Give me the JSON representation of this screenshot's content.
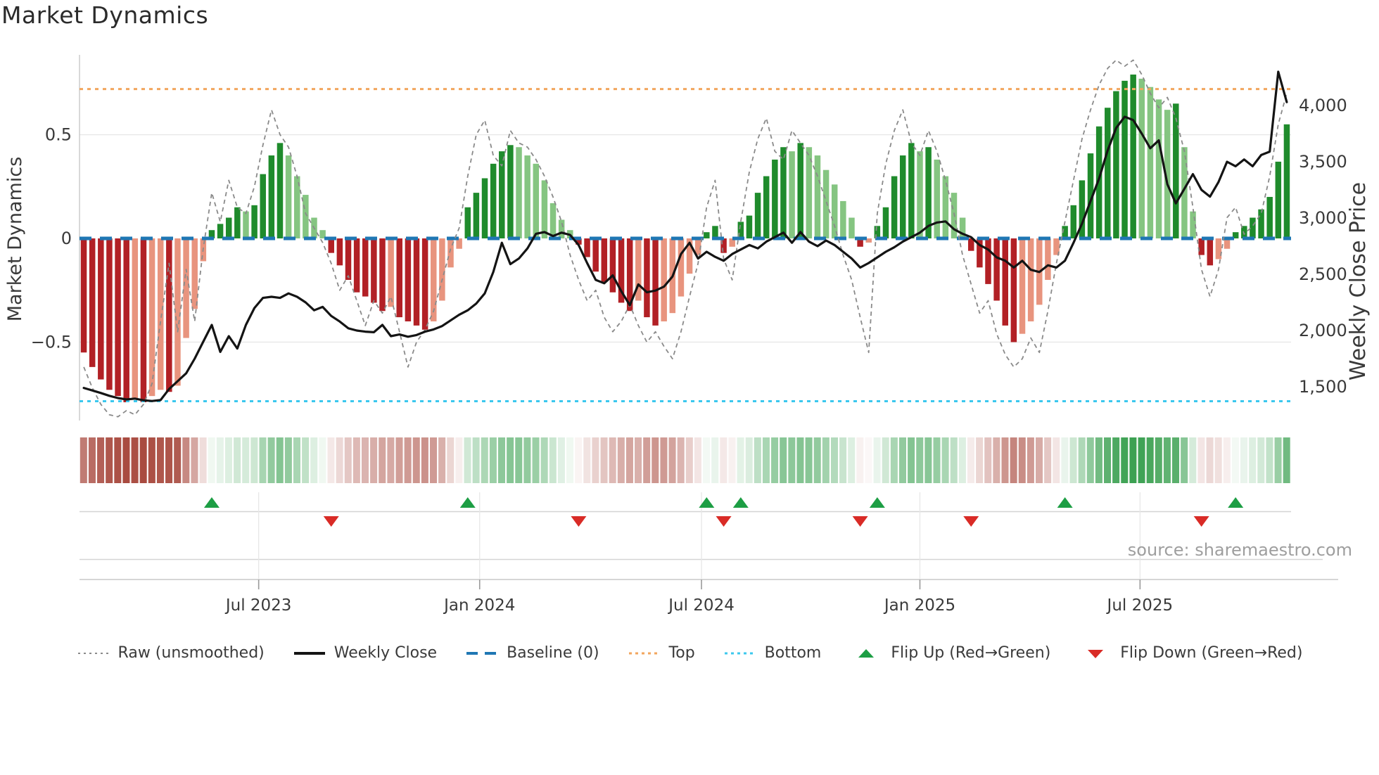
{
  "title": "Market Dynamics",
  "source_text": "source: sharemaestro.com",
  "left_axis": {
    "title": "Market Dynamics",
    "ticks": [
      {
        "label": "0.5",
        "value": 0.5
      },
      {
        "label": "0",
        "value": 0
      },
      {
        "label": "−0.5",
        "value": -0.5
      }
    ],
    "gridline_values": [
      0.5,
      -0.5
    ]
  },
  "right_axis": {
    "title": "Weekly Close Price",
    "ticks": [
      {
        "label": "4,000",
        "value": 4000
      },
      {
        "label": "3,500",
        "value": 3500
      },
      {
        "label": "3,000",
        "value": 3000
      },
      {
        "label": "2,500",
        "value": 2500
      },
      {
        "label": "2,000",
        "value": 2000
      },
      {
        "label": "1,500",
        "value": 1500
      }
    ]
  },
  "x_axis": {
    "ticks": [
      {
        "label": "Jul 2023",
        "week": 20.5
      },
      {
        "label": "Jan 2024",
        "week": 46.4
      },
      {
        "label": "Jul 2024",
        "week": 72.4
      },
      {
        "label": "Jan 2025",
        "week": 98.0
      },
      {
        "label": "Jul 2025",
        "week": 123.8
      }
    ]
  },
  "colors": {
    "bar_up_strong": "#1f8b2c",
    "bar_up_weak": "#85c581",
    "bar_down_strong": "#b22025",
    "bar_down_weak": "#e8947e",
    "baseline": "#1f77b4",
    "top_line": "#f2a65e",
    "bottom_line": "#3cc8ee",
    "raw_line": "#8a8a8a",
    "close_line": "#141414",
    "heat_pos_full": "#3aa050",
    "heat_neg_full": "#a8493e",
    "flip_up": "#1d9e44",
    "flip_down": "#d92b26",
    "grid": "#e7e7e7",
    "band_grid": "#d4d4d4",
    "spine": "#c9c9c9",
    "tick_text": "#3a3a3a",
    "source_text": "#9e9e9e"
  },
  "legend": {
    "items": [
      {
        "name": "legend-item-raw",
        "label": "Raw (unsmoothed)",
        "swatch": "line",
        "color": "#8a8a8a",
        "dash": "3 5",
        "width": 2
      },
      {
        "name": "legend-item-close",
        "label": "Weekly Close",
        "swatch": "line",
        "color": "#141414",
        "dash": "",
        "width": 4
      },
      {
        "name": "legend-item-baseline",
        "label": "Baseline (0)",
        "swatch": "line",
        "color": "#1f77b4",
        "dash": "16 10",
        "width": 4
      },
      {
        "name": "legend-item-top",
        "label": "Top",
        "swatch": "line",
        "color": "#f2a65e",
        "dash": "4 5",
        "width": 3
      },
      {
        "name": "legend-item-bottom",
        "label": "Bottom",
        "swatch": "line",
        "color": "#3cc8ee",
        "dash": "4 5",
        "width": 3
      },
      {
        "name": "legend-item-flip-up",
        "label": "Flip Up (Red→Green)",
        "swatch": "triangle-up",
        "color": "#1d9e44"
      },
      {
        "name": "legend-item-flip-down",
        "label": "Flip Down (Green→Red)",
        "swatch": "triangle-down",
        "color": "#d92b26"
      }
    ]
  },
  "chart_data": {
    "type": "bar+line",
    "x_unit": "week_index",
    "n_weeks": 142,
    "ylim_left": [
      -0.868,
      0.885
    ],
    "ylim_right": [
      1219,
      4450
    ],
    "baseline": 0,
    "top_threshold": 0.72,
    "bottom_threshold": -0.785,
    "grid": "horizontal-light",
    "legend_position": "bottom-center",
    "smoothed": [
      -0.55,
      -0.62,
      -0.68,
      -0.73,
      -0.76,
      -0.79,
      -0.77,
      -0.79,
      -0.76,
      -0.73,
      -0.74,
      -0.71,
      -0.48,
      -0.34,
      -0.11,
      0.04,
      0.07,
      0.1,
      0.15,
      0.13,
      0.16,
      0.31,
      0.4,
      0.46,
      0.4,
      0.3,
      0.21,
      0.1,
      0.04,
      -0.07,
      -0.13,
      -0.2,
      -0.26,
      -0.28,
      -0.31,
      -0.35,
      -0.33,
      -0.38,
      -0.4,
      -0.42,
      -0.44,
      -0.4,
      -0.3,
      -0.14,
      -0.05,
      0.15,
      0.22,
      0.29,
      0.36,
      0.42,
      0.45,
      0.44,
      0.4,
      0.36,
      0.28,
      0.17,
      0.09,
      0.04,
      -0.03,
      -0.09,
      -0.16,
      -0.21,
      -0.26,
      -0.31,
      -0.35,
      -0.3,
      -0.38,
      -0.42,
      -0.4,
      -0.36,
      -0.28,
      -0.17,
      -0.08,
      0.03,
      0.06,
      -0.07,
      -0.04,
      0.08,
      0.11,
      0.22,
      0.3,
      0.38,
      0.44,
      0.42,
      0.46,
      0.44,
      0.4,
      0.33,
      0.26,
      0.18,
      0.1,
      -0.04,
      -0.02,
      0.06,
      0.15,
      0.3,
      0.4,
      0.46,
      0.42,
      0.44,
      0.38,
      0.3,
      0.22,
      0.1,
      -0.06,
      -0.14,
      -0.22,
      -0.3,
      -0.42,
      -0.5,
      -0.46,
      -0.4,
      -0.32,
      -0.2,
      -0.08,
      0.06,
      0.16,
      0.28,
      0.41,
      0.54,
      0.63,
      0.71,
      0.76,
      0.79,
      0.77,
      0.73,
      0.67,
      0.62,
      0.65,
      0.44,
      0.13,
      -0.08,
      -0.13,
      -0.1,
      -0.05,
      0.03,
      0.06,
      0.1,
      0.14,
      0.2,
      0.37,
      0.55
    ],
    "raw": [
      -0.62,
      -0.72,
      -0.8,
      -0.85,
      -0.86,
      -0.83,
      -0.85,
      -0.8,
      -0.7,
      -0.4,
      -0.12,
      -0.45,
      -0.15,
      -0.4,
      -0.05,
      0.22,
      0.08,
      0.28,
      0.15,
      0.12,
      0.25,
      0.45,
      0.62,
      0.5,
      0.44,
      0.3,
      0.12,
      0.05,
      -0.02,
      -0.12,
      -0.25,
      -0.18,
      -0.3,
      -0.42,
      -0.3,
      -0.36,
      -0.28,
      -0.45,
      -0.62,
      -0.5,
      -0.44,
      -0.35,
      -0.2,
      -0.05,
      0.05,
      0.3,
      0.5,
      0.57,
      0.4,
      0.35,
      0.52,
      0.46,
      0.44,
      0.38,
      0.3,
      0.2,
      0.08,
      -0.08,
      -0.2,
      -0.3,
      -0.25,
      -0.38,
      -0.45,
      -0.4,
      -0.32,
      -0.42,
      -0.5,
      -0.45,
      -0.52,
      -0.58,
      -0.45,
      -0.28,
      -0.12,
      0.15,
      0.28,
      -0.1,
      -0.2,
      0.08,
      0.32,
      0.48,
      0.58,
      0.42,
      0.38,
      0.52,
      0.46,
      0.4,
      0.3,
      0.18,
      0.06,
      -0.08,
      -0.2,
      -0.38,
      -0.55,
      0.12,
      0.36,
      0.52,
      0.62,
      0.46,
      0.4,
      0.52,
      0.42,
      0.28,
      0.12,
      -0.08,
      -0.22,
      -0.36,
      -0.3,
      -0.46,
      -0.56,
      -0.62,
      -0.58,
      -0.48,
      -0.55,
      -0.35,
      -0.12,
      0.08,
      0.28,
      0.48,
      0.62,
      0.74,
      0.82,
      0.86,
      0.83,
      0.86,
      0.79,
      0.7,
      0.63,
      0.68,
      0.58,
      0.42,
      0.15,
      -0.15,
      -0.28,
      -0.15,
      0.1,
      0.15,
      0.02,
      0.06,
      0.12,
      0.3,
      0.55,
      0.7
    ],
    "weekly_close": [
      1490,
      1468,
      1445,
      1420,
      1400,
      1388,
      1395,
      1380,
      1374,
      1382,
      1480,
      1550,
      1620,
      1750,
      1900,
      2050,
      1810,
      1950,
      1840,
      2050,
      2200,
      2290,
      2300,
      2290,
      2330,
      2300,
      2250,
      2180,
      2210,
      2130,
      2080,
      2020,
      2000,
      1990,
      1985,
      2050,
      1950,
      1965,
      1945,
      1960,
      1990,
      2010,
      2040,
      2090,
      2140,
      2180,
      2240,
      2330,
      2520,
      2780,
      2590,
      2640,
      2730,
      2860,
      2875,
      2840,
      2870,
      2850,
      2760,
      2600,
      2450,
      2420,
      2490,
      2350,
      2225,
      2410,
      2340,
      2355,
      2390,
      2480,
      2680,
      2780,
      2640,
      2700,
      2655,
      2620,
      2680,
      2720,
      2760,
      2730,
      2790,
      2830,
      2870,
      2780,
      2875,
      2790,
      2750,
      2800,
      2760,
      2700,
      2640,
      2560,
      2600,
      2650,
      2700,
      2740,
      2790,
      2830,
      2870,
      2930,
      2960,
      2970,
      2900,
      2860,
      2830,
      2760,
      2720,
      2650,
      2620,
      2560,
      2620,
      2540,
      2520,
      2580,
      2560,
      2620,
      2780,
      2950,
      3150,
      3350,
      3600,
      3800,
      3900,
      3870,
      3750,
      3620,
      3690,
      3300,
      3130,
      3260,
      3390,
      3250,
      3190,
      3320,
      3500,
      3460,
      3520,
      3460,
      3560,
      3590,
      4300,
      4030
    ],
    "flip_up_weeks": [
      15,
      45,
      73,
      77,
      93,
      115,
      135
    ],
    "flip_down_weeks": [
      29,
      58,
      75,
      91,
      104,
      131
    ]
  }
}
